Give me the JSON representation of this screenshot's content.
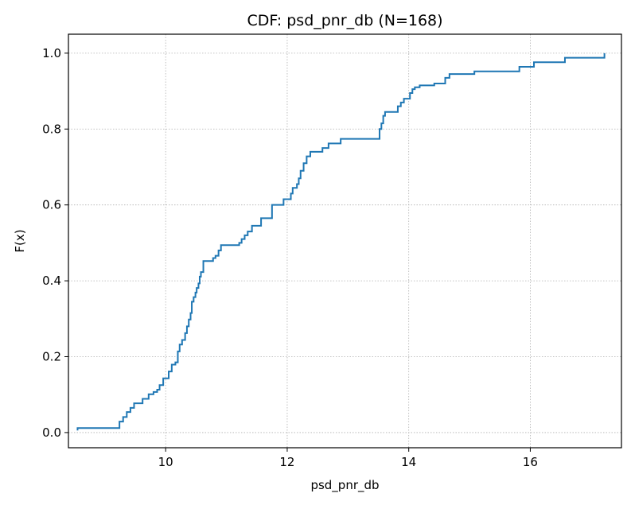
{
  "chart_data": {
    "type": "line",
    "title": "CDF: psd_pnr_db  (N=168)",
    "xlabel": "psd_pnr_db",
    "ylabel": "F(x)",
    "xlim": [
      8.4,
      17.5
    ],
    "ylim": [
      -0.04,
      1.05
    ],
    "xticks": [
      10,
      12,
      14,
      16
    ],
    "yticks": [
      0.0,
      0.2,
      0.4,
      0.6,
      0.8,
      1.0
    ],
    "xtick_labels": [
      "10",
      "12",
      "14",
      "16"
    ],
    "ytick_labels": [
      "0.0",
      "0.2",
      "0.4",
      "0.6",
      "0.8",
      "1.0"
    ],
    "grid": true,
    "step": "post",
    "series_color": "#1f77b4",
    "series": [
      {
        "x": [
          8.55,
          9.24,
          9.3,
          9.36,
          9.42,
          9.48,
          9.62,
          9.72,
          9.8,
          9.86,
          9.9,
          9.96,
          10.05,
          10.1,
          10.16,
          10.2,
          10.23,
          10.27,
          10.32,
          10.35,
          10.38,
          10.41,
          10.43,
          10.46,
          10.49,
          10.51,
          10.54,
          10.56,
          10.58,
          10.62,
          10.78,
          10.82,
          10.87,
          10.91,
          11.21,
          11.25,
          11.3,
          11.35,
          11.42,
          11.57,
          11.75,
          11.94,
          12.06,
          12.09,
          12.16,
          12.19,
          12.22,
          12.27,
          12.32,
          12.38,
          12.58,
          12.68,
          12.88,
          13.52,
          13.55,
          13.58,
          13.61,
          13.64,
          13.72,
          13.82,
          13.87,
          13.92,
          14.02,
          14.06,
          14.1,
          14.18,
          14.42,
          14.6,
          14.67,
          15.08,
          15.82,
          16.06,
          16.57,
          17.22
        ],
        "y": [
          0.012,
          0.029,
          0.041,
          0.054,
          0.065,
          0.077,
          0.089,
          0.101,
          0.107,
          0.113,
          0.125,
          0.143,
          0.161,
          0.179,
          0.185,
          0.214,
          0.232,
          0.244,
          0.262,
          0.28,
          0.298,
          0.315,
          0.345,
          0.357,
          0.369,
          0.381,
          0.393,
          0.411,
          0.423,
          0.452,
          0.46,
          0.466,
          0.48,
          0.494,
          0.5,
          0.51,
          0.52,
          0.53,
          0.545,
          0.565,
          0.6,
          0.615,
          0.63,
          0.645,
          0.655,
          0.67,
          0.69,
          0.71,
          0.728,
          0.74,
          0.75,
          0.762,
          0.774,
          0.8,
          0.815,
          0.835,
          0.845,
          0.845,
          0.845,
          0.86,
          0.87,
          0.88,
          0.895,
          0.905,
          0.91,
          0.915,
          0.92,
          0.935,
          0.945,
          0.952,
          0.964,
          0.976,
          0.988,
          1.0
        ]
      }
    ]
  }
}
